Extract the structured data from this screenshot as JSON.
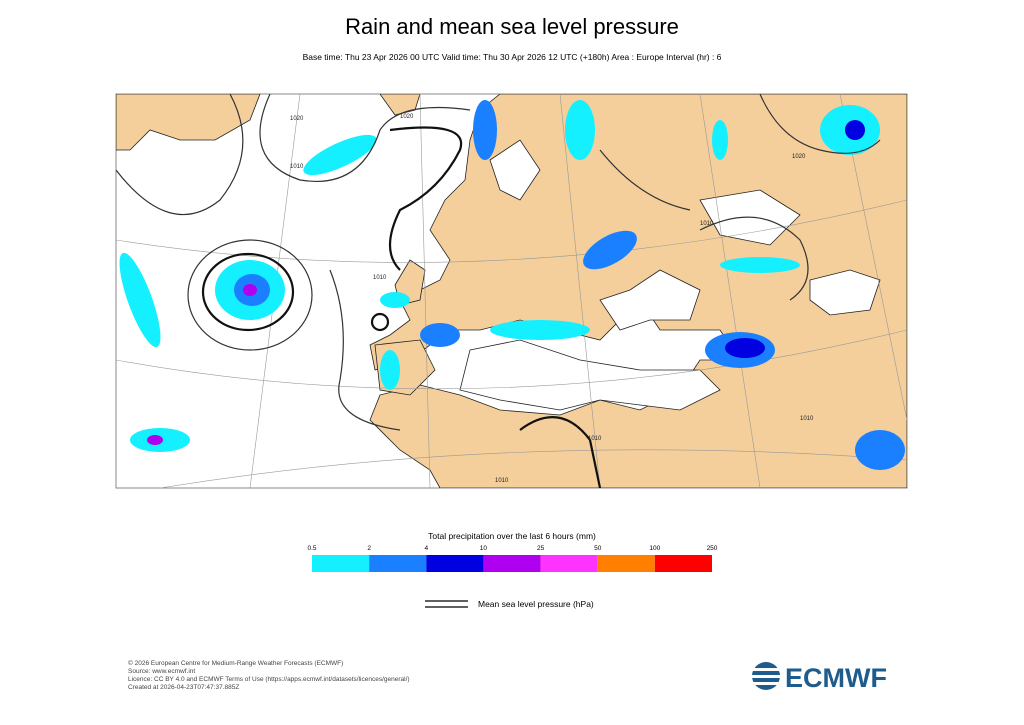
{
  "header": {
    "title": "Rain and mean sea level pressure",
    "subtitle": "Base time: Thu 23 Apr 2026 00 UTC Valid time: Thu 30 Apr 2026 12 UTC (+180h) Area : Europe Interval (hr) : 6"
  },
  "map": {
    "isobar_labels": [
      "1020",
      "1010",
      "1020",
      "1010",
      "1010",
      "1020",
      "1010",
      "1010",
      "1010"
    ]
  },
  "colorbar": {
    "title": "Total precipitation over the last 6 hours (mm)",
    "ticks": [
      0.5,
      2,
      4,
      10,
      25,
      50,
      100,
      250
    ],
    "colors": [
      "#14f0ff",
      "#1a80ff",
      "#0000e0",
      "#b000f0",
      "#ff33ff",
      "#ff8000",
      "#ff0000"
    ]
  },
  "line_legend": {
    "label": "Mean sea level pressure (hPa)"
  },
  "footer": {
    "lines": [
      "© 2026 European Centre for Medium-Range Weather Forecasts (ECMWF)",
      "Source: www.ecmwf.int",
      "Licence: CC BY 4.0 and ECMWF Terms of Use (https://apps.ecmwf.int/datasets/licences/general/)",
      "Created at 2026-04-23T07:47:37.885Z"
    ],
    "logo": "ECMWF"
  }
}
